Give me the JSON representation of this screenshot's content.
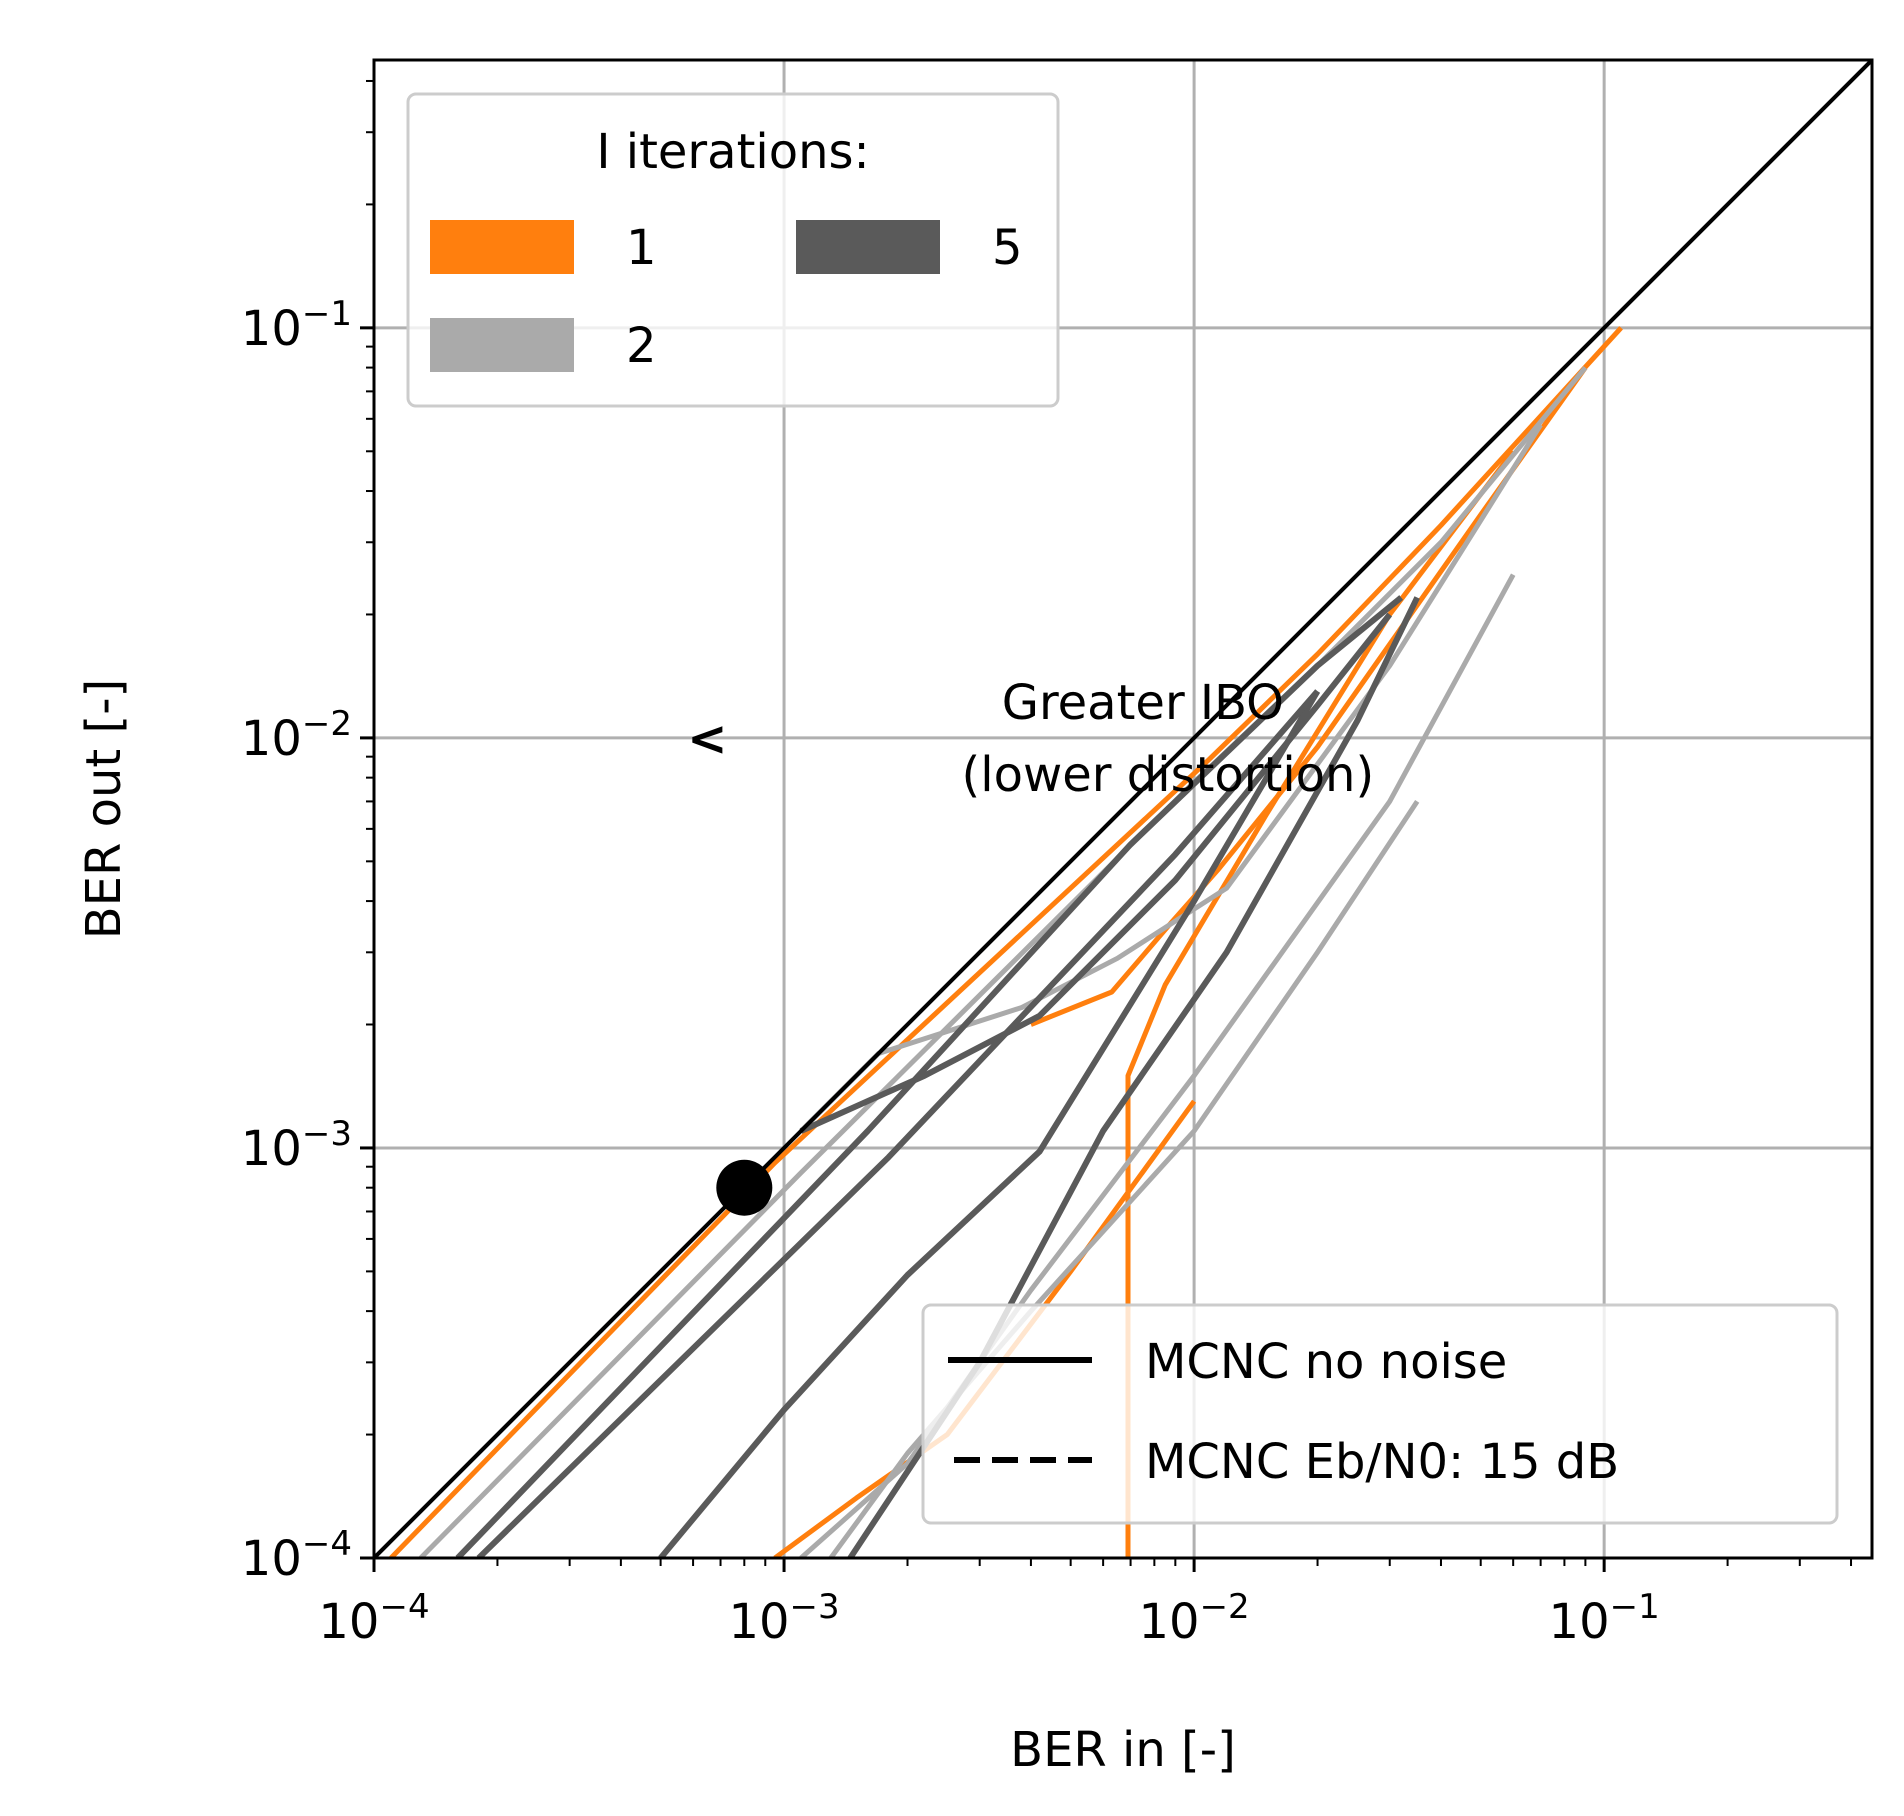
{
  "chart_data": {
    "type": "line",
    "xlabel": "BER in [-]",
    "ylabel": "BER out [-]",
    "x_scale": "log",
    "y_scale": "log",
    "xlim": [
      0.0001,
      0.45
    ],
    "ylim": [
      0.0001,
      0.45
    ],
    "x_ticks": [
      {
        "value": 0.0001,
        "base": "10",
        "exp": "−4"
      },
      {
        "value": 0.001,
        "base": "10",
        "exp": "−3"
      },
      {
        "value": 0.01,
        "base": "10",
        "exp": "−2"
      },
      {
        "value": 0.1,
        "base": "10",
        "exp": "−1"
      }
    ],
    "y_ticks": [
      {
        "value": 0.0001,
        "base": "10",
        "exp": "−4"
      },
      {
        "value": 0.001,
        "base": "10",
        "exp": "−3"
      },
      {
        "value": 0.01,
        "base": "10",
        "exp": "−2"
      },
      {
        "value": 0.1,
        "base": "10",
        "exp": "−1"
      }
    ],
    "grid": true,
    "colors": {
      "iter1": "#ff7f0e",
      "iter2": "#aaaaaa",
      "iter5": "#5a5a5a",
      "reference": "#000000"
    },
    "reference_line": {
      "x": [
        0.0001,
        0.45
      ],
      "y": [
        0.0001,
        0.45
      ]
    },
    "marker": {
      "x": 0.0008,
      "y": 0.0008
    },
    "series": [
      {
        "group": "iter1",
        "x": [
          0.00011,
          0.00095,
          0.0108,
          0.02,
          0.04,
          0.11
        ],
        "y": [
          0.0001,
          0.00092,
          0.0088,
          0.016,
          0.033,
          0.1
        ]
      },
      {
        "group": "iter1",
        "x": [
          0.004,
          0.0063,
          0.0087,
          0.0115,
          0.02,
          0.05,
          0.09
        ],
        "y": [
          0.002,
          0.0024,
          0.0035,
          0.0048,
          0.0095,
          0.035,
          0.08
        ]
      },
      {
        "group": "iter1",
        "x": [
          0.0069,
          0.0069,
          0.0085,
          0.015,
          0.03,
          0.06
        ],
        "y": [
          0.0001,
          0.0015,
          0.0025,
          0.0065,
          0.02,
          0.05
        ]
      },
      {
        "group": "iter1",
        "x": [
          0.00095,
          0.0015,
          0.0025,
          0.005,
          0.01
        ],
        "y": [
          0.0001,
          0.00014,
          0.0002,
          0.0005,
          0.0013
        ]
      },
      {
        "group": "iter2",
        "x": [
          0.00013,
          0.0011,
          0.01,
          0.02,
          0.04,
          0.09
        ],
        "y": [
          0.0001,
          0.00087,
          0.0078,
          0.015,
          0.03,
          0.08
        ]
      },
      {
        "group": "iter2",
        "x": [
          0.0011,
          0.0017,
          0.0038,
          0.0065,
          0.012,
          0.03,
          0.07
        ],
        "y": [
          0.0011,
          0.0017,
          0.0022,
          0.0029,
          0.0043,
          0.015,
          0.058
        ]
      },
      {
        "group": "iter2",
        "x": [
          0.0013,
          0.002,
          0.004,
          0.01,
          0.02,
          0.035
        ],
        "y": [
          0.0001,
          0.00018,
          0.0004,
          0.0011,
          0.003,
          0.007
        ]
      },
      {
        "group": "iter2",
        "x": [
          0.0011,
          0.002,
          0.004,
          0.01,
          0.03,
          0.06
        ],
        "y": [
          0.0001,
          0.00017,
          0.00045,
          0.0015,
          0.007,
          0.025
        ]
      },
      {
        "group": "iter5",
        "x": [
          0.00016,
          0.0016,
          0.007,
          0.02,
          0.032
        ],
        "y": [
          0.0001,
          0.0011,
          0.0055,
          0.015,
          0.022
        ]
      },
      {
        "group": "iter5",
        "x": [
          0.0011,
          0.0022,
          0.0042,
          0.009,
          0.02,
          0.03
        ],
        "y": [
          0.0011,
          0.0015,
          0.0021,
          0.0045,
          0.012,
          0.02
        ]
      },
      {
        "group": "iter5",
        "x": [
          0.0005,
          0.001,
          0.002,
          0.0042,
          0.01,
          0.02
        ],
        "y": [
          0.0001,
          0.00023,
          0.00049,
          0.00098,
          0.004,
          0.013
        ]
      },
      {
        "group": "iter5",
        "x": [
          0.00145,
          0.003,
          0.006,
          0.012,
          0.025,
          0.035
        ],
        "y": [
          0.0001,
          0.0003,
          0.0011,
          0.003,
          0.011,
          0.022
        ]
      },
      {
        "group": "iter5",
        "x": [
          0.00018,
          0.0018,
          0.009,
          0.02
        ],
        "y": [
          0.0001,
          0.00095,
          0.0052,
          0.013
        ]
      }
    ],
    "annotation": {
      "text_line1": "Greater IBO",
      "text_line2": "(lower distortion)",
      "arrow": "<",
      "x": 0.0075,
      "y": 0.0105,
      "arrow_x": 0.00065
    },
    "legend_iterations": {
      "title": "I iterations:",
      "entries": [
        {
          "label": "1",
          "group": "iter1"
        },
        {
          "label": "2",
          "group": "iter2"
        },
        {
          "label": "5",
          "group": "iter5"
        }
      ],
      "placement": "top-left"
    },
    "legend_styles": {
      "entries": [
        {
          "label": "MCNC no noise",
          "style": "solid"
        },
        {
          "label": "MCNC Eb/N0: 15 dB",
          "style": "dashed"
        }
      ],
      "placement": "bottom-right"
    }
  }
}
